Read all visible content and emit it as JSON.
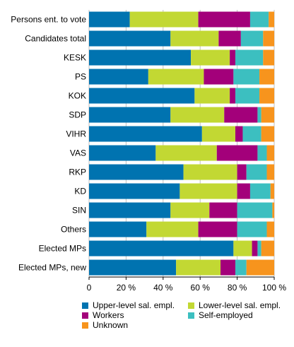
{
  "chart_data": {
    "type": "bar",
    "orientation": "horizontal",
    "stacked": true,
    "categories": [
      "Persons ent. to vote",
      "Candidates total",
      "KESK",
      "PS",
      "KOK",
      "SDP",
      "VIHR",
      "VAS",
      "RKP",
      "KD",
      "SIN",
      "Others",
      "Elected MPs",
      "Elected MPs, new"
    ],
    "series": [
      {
        "name": "Upper-level sal. empl.",
        "color": "#0073b0",
        "values": [
          22,
          44,
          55,
          32,
          57,
          44,
          61,
          36,
          51,
          49,
          44,
          31,
          78,
          47
        ]
      },
      {
        "name": "Lower-level sal. empl.",
        "color": "#c2d833",
        "values": [
          37,
          26,
          21,
          30,
          19,
          29,
          18,
          33,
          29,
          31,
          21,
          28,
          10,
          24
        ]
      },
      {
        "name": "Workers",
        "color": "#a3007a",
        "values": [
          28,
          12,
          3,
          16,
          3,
          18,
          4,
          22,
          5,
          7,
          15,
          21,
          3,
          8
        ]
      },
      {
        "name": "Self-employed",
        "color": "#3cbfc0",
        "values": [
          10,
          12,
          15,
          14,
          13,
          2,
          10,
          5,
          11,
          11,
          19,
          16,
          2,
          6
        ]
      },
      {
        "name": "Unknown",
        "color": "#f7941d",
        "values": [
          3,
          6,
          6,
          8,
          8,
          7,
          7,
          4,
          4,
          2,
          1,
          4,
          7,
          15
        ]
      }
    ],
    "xlim": [
      0,
      100
    ],
    "xticks": [
      "0",
      "20 %",
      "40 %",
      "60 %",
      "80 %",
      "100 %"
    ],
    "grid": true,
    "legend": {
      "position": "bottom",
      "columns": 2
    }
  }
}
